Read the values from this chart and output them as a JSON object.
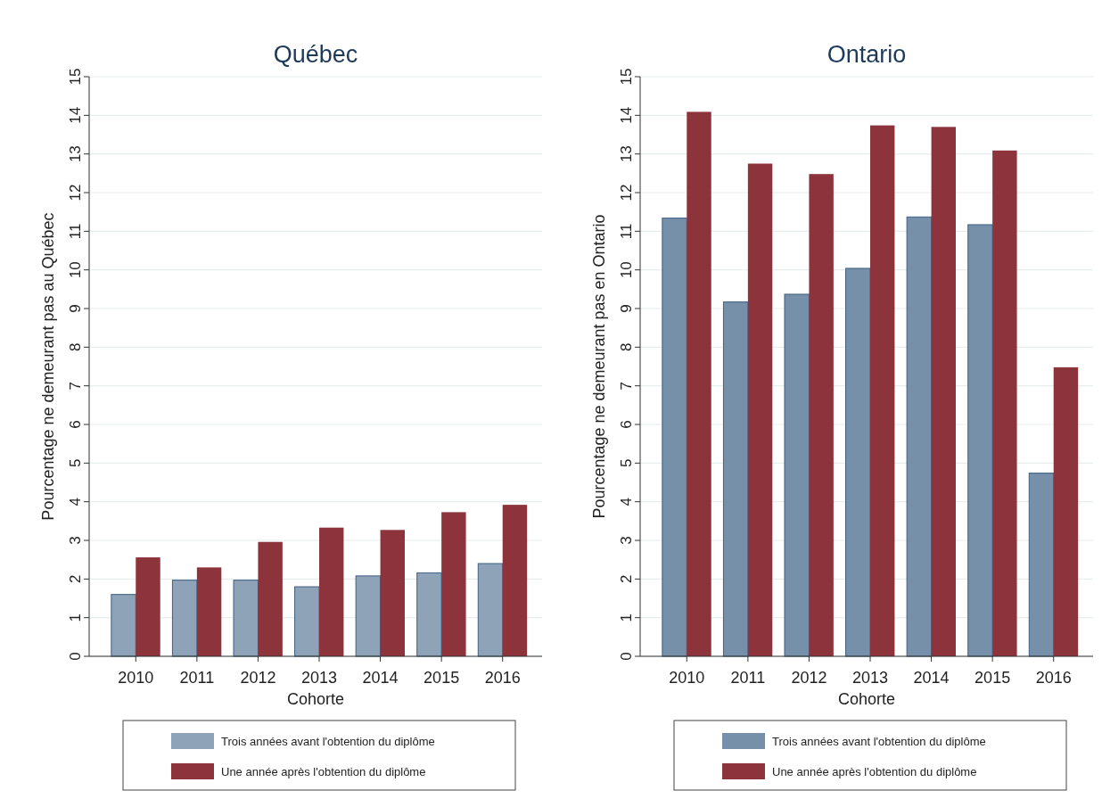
{
  "chart_data": [
    {
      "type": "bar",
      "title": "Québec",
      "xlabel": "Cohorte",
      "ylabel": "Pourcentage ne demeurant pas au Québec",
      "categories": [
        "2010",
        "2011",
        "2012",
        "2013",
        "2014",
        "2015",
        "2016"
      ],
      "series": [
        {
          "name": "Trois années avant l'obtention du diplôme",
          "color": "#8ea3b8",
          "values": [
            1.6,
            1.97,
            1.97,
            1.8,
            2.08,
            2.16,
            2.4
          ]
        },
        {
          "name": "Une année après l'obtention du diplôme",
          "color": "#8c333b",
          "values": [
            2.56,
            2.3,
            2.96,
            3.33,
            3.27,
            3.73,
            3.92
          ]
        }
      ],
      "ylim": [
        0,
        15
      ],
      "yticks": [
        0,
        1,
        2,
        3,
        4,
        5,
        6,
        7,
        8,
        9,
        10,
        11,
        12,
        13,
        14,
        15
      ],
      "grid": "y",
      "legend": "bottom"
    },
    {
      "type": "bar",
      "title": "Ontario",
      "xlabel": "Cohorte",
      "ylabel": "Pourcentage ne demeurant pas en Ontario",
      "categories": [
        "2010",
        "2011",
        "2012",
        "2013",
        "2014",
        "2015",
        "2016"
      ],
      "series": [
        {
          "name": "Trois années avant l'obtention du diplôme",
          "color": "#7690aa",
          "values": [
            11.34,
            9.17,
            9.37,
            10.04,
            11.37,
            11.17,
            4.74
          ]
        },
        {
          "name": "Une année après l'obtention du diplôme",
          "color": "#8c333b",
          "values": [
            14.09,
            12.75,
            12.48,
            13.74,
            13.7,
            13.09,
            7.48
          ]
        }
      ],
      "ylim": [
        0,
        15
      ],
      "yticks": [
        0,
        1,
        2,
        3,
        4,
        5,
        6,
        7,
        8,
        9,
        10,
        11,
        12,
        13,
        14,
        15
      ],
      "grid": "y",
      "legend": "bottom"
    }
  ]
}
